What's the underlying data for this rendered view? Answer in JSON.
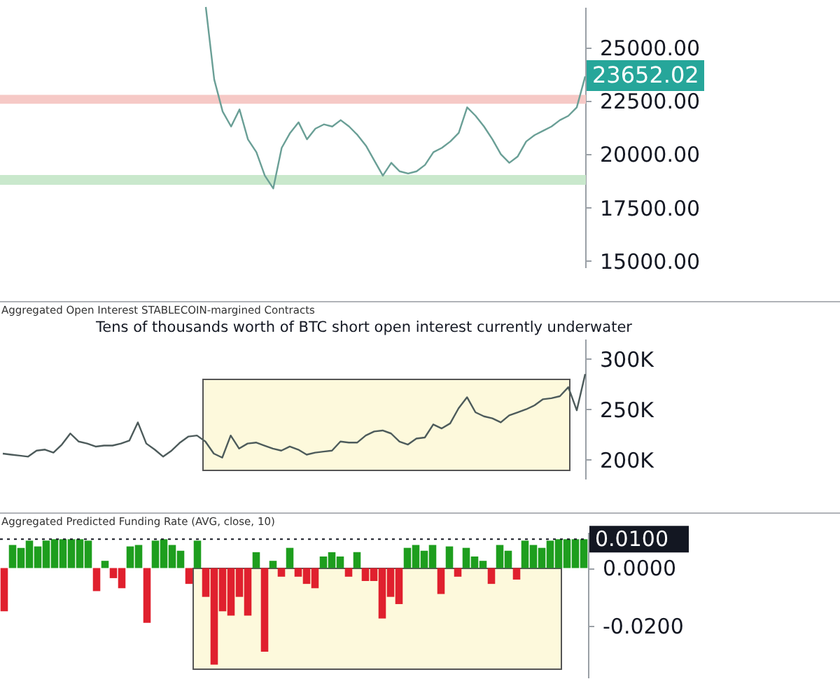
{
  "chart_data": [
    {
      "type": "line",
      "categories": [
        null,
        null,
        null,
        null,
        null,
        null,
        null,
        null,
        null,
        null,
        null,
        null,
        null,
        null,
        null,
        null,
        null,
        null,
        null,
        null,
        null,
        null,
        null,
        null,
        null,
        null,
        null,
        null,
        null,
        null,
        null,
        null,
        null,
        null,
        null,
        null,
        null,
        null,
        null,
        null,
        null,
        null,
        null,
        null,
        null,
        null
      ],
      "series": [
        {
          "color": "#6a9f96",
          "values": [
            26900,
            23500,
            22000,
            21300,
            22100,
            20700,
            20100,
            19000,
            18400,
            20300,
            21000,
            21500,
            20700,
            21200,
            21400,
            21300,
            21600,
            21300,
            20900,
            20400,
            19700,
            19000,
            19600,
            19200,
            19100,
            19200,
            19500,
            20100,
            20300,
            20600,
            21000,
            22200,
            21800,
            21300,
            20700,
            20000,
            19600,
            19900,
            20600,
            20900,
            21100,
            21300,
            21600,
            21800,
            22200,
            23650
          ]
        }
      ],
      "ylim": [
        14700,
        26900
      ],
      "yticks": [
        {
          "value": 15000,
          "label": "15000.00"
        },
        {
          "value": 17500,
          "label": "17500.00"
        },
        {
          "value": 20000,
          "label": "20000.00"
        },
        {
          "value": 22500,
          "label": "22500.00"
        },
        {
          "value": 25000,
          "label": "25000.00"
        }
      ],
      "bands": [
        {
          "axis": "y",
          "from": 22400,
          "to": 22750,
          "color": "#f6c9c6"
        },
        {
          "axis": "y",
          "from": 18600,
          "to": 19000,
          "color": "#c9e8cc"
        }
      ],
      "annotations": [
        "23652.02"
      ],
      "tick_labels": "y",
      "grid": false
    },
    {
      "type": "line",
      "title": "Aggregated Open Interest STABLECOIN-margined Contracts",
      "categories": [
        null,
        null,
        null,
        null,
        null,
        null,
        null,
        null,
        null,
        null,
        null,
        null,
        null,
        null,
        null,
        null,
        null,
        null,
        null,
        null,
        null,
        null,
        null,
        null,
        null,
        null,
        null,
        null,
        null,
        null,
        null,
        null,
        null,
        null,
        null,
        null,
        null,
        null,
        null,
        null,
        null,
        null,
        null,
        null,
        null,
        null,
        null,
        null,
        null,
        null,
        null,
        null,
        null,
        null,
        null,
        null,
        null,
        null,
        null,
        null,
        null,
        null,
        null,
        null,
        null,
        null,
        null,
        null,
        null,
        null
      ],
      "series": [
        {
          "color": "#4d5b5b",
          "values": [
            206000,
            205000,
            204000,
            203000,
            209000,
            210000,
            207000,
            215000,
            226000,
            218000,
            216000,
            213000,
            214000,
            214000,
            216000,
            219000,
            237000,
            216000,
            210000,
            203000,
            209000,
            217000,
            223000,
            224000,
            218000,
            206000,
            202000,
            224000,
            211000,
            216000,
            217000,
            214000,
            211000,
            209000,
            213000,
            210000,
            205000,
            207000,
            208000,
            209000,
            218000,
            217000,
            217000,
            224000,
            228000,
            229000,
            226000,
            218000,
            215000,
            221000,
            222000,
            235000,
            231000,
            236000,
            251000,
            262000,
            247000,
            243000,
            241000,
            237000,
            244000,
            247000,
            250000,
            254000,
            260000,
            261000,
            263000,
            272000,
            249000,
            285000
          ]
        }
      ],
      "ylim": [
        181000,
        320000
      ],
      "yticks": [
        {
          "value": 200000,
          "label": "200K"
        },
        {
          "value": 250000,
          "label": "250K"
        },
        {
          "value": 300000,
          "label": "300K"
        }
      ],
      "annotations": [
        "Tens of thousands worth of BTC short open interest currently underwater"
      ],
      "tick_labels": "y",
      "grid": false
    },
    {
      "type": "bar",
      "title": "Aggregated Predicted Funding Rate (AVG, close, 10)",
      "categories": [
        null,
        null,
        null,
        null,
        null,
        null,
        null,
        null,
        null,
        null,
        null,
        null,
        null,
        null,
        null,
        null,
        null,
        null,
        null,
        null,
        null,
        null,
        null,
        null,
        null,
        null,
        null,
        null,
        null,
        null,
        null,
        null,
        null,
        null,
        null,
        null,
        null,
        null,
        null,
        null,
        null,
        null,
        null,
        null,
        null,
        null,
        null,
        null,
        null,
        null,
        null,
        null,
        null,
        null,
        null,
        null,
        null,
        null,
        null,
        null,
        null,
        null,
        null,
        null,
        null,
        null,
        null,
        null,
        null,
        null
      ],
      "series": [
        {
          "values": [
            -0.015,
            0.008,
            0.007,
            0.0095,
            0.0075,
            0.0095,
            0.01,
            0.01,
            0.01,
            0.01,
            0.0095,
            -0.008,
            0.0025,
            -0.0035,
            -0.007,
            0.0075,
            0.008,
            -0.019,
            0.0095,
            0.01,
            0.008,
            0.006,
            -0.0055,
            0.0095,
            -0.01,
            -0.0335,
            -0.015,
            -0.0165,
            -0.01,
            -0.0165,
            0.0055,
            -0.029,
            0.0025,
            -0.003,
            0.007,
            -0.003,
            -0.0055,
            -0.007,
            0.004,
            0.0055,
            0.004,
            -0.003,
            0.0055,
            -0.0045,
            -0.0045,
            -0.0175,
            -0.01,
            -0.0125,
            0.007,
            0.008,
            0.006,
            0.008,
            -0.009,
            0.0075,
            -0.003,
            0.007,
            0.004,
            0.0025,
            -0.0055,
            0.008,
            0.006,
            -0.004,
            0.0095,
            0.008,
            0.007,
            0.0095,
            0.01,
            0.01,
            0.01,
            0.01
          ],
          "colors": [
            "#e0202e",
            "#1e9e1e",
            "#1e9e1e",
            "#1e9e1e",
            "#1e9e1e",
            "#1e9e1e",
            "#1e9e1e",
            "#1e9e1e",
            "#1e9e1e",
            "#1e9e1e",
            "#1e9e1e",
            "#e0202e",
            "#1e9e1e",
            "#e0202e",
            "#e0202e",
            "#1e9e1e",
            "#1e9e1e",
            "#e0202e",
            "#1e9e1e",
            "#1e9e1e",
            "#1e9e1e",
            "#1e9e1e",
            "#e0202e",
            "#1e9e1e",
            "#e0202e",
            "#e0202e",
            "#e0202e",
            "#e0202e",
            "#e0202e",
            "#e0202e",
            "#1e9e1e",
            "#e0202e",
            "#1e9e1e",
            "#e0202e",
            "#1e9e1e",
            "#e0202e",
            "#e0202e",
            "#e0202e",
            "#1e9e1e",
            "#1e9e1e",
            "#1e9e1e",
            "#e0202e",
            "#1e9e1e",
            "#e0202e",
            "#e0202e",
            "#e0202e",
            "#e0202e",
            "#e0202e",
            "#1e9e1e",
            "#1e9e1e",
            "#1e9e1e",
            "#1e9e1e",
            "#e0202e",
            "#1e9e1e",
            "#e0202e",
            "#1e9e1e",
            "#1e9e1e",
            "#1e9e1e",
            "#e0202e",
            "#1e9e1e",
            "#1e9e1e",
            "#e0202e",
            "#1e9e1e",
            "#1e9e1e",
            "#1e9e1e",
            "#1e9e1e",
            "#1e9e1e",
            "#1e9e1e",
            "#1e9e1e",
            "#1e9e1e"
          ]
        }
      ],
      "ylim": [
        -0.038,
        0.0125
      ],
      "yticks": [
        {
          "value": -0.02,
          "label": "-0.0200"
        },
        {
          "value": 0,
          "label": "0.0000"
        }
      ],
      "ref_lines": [
        {
          "axis": "y",
          "value": 0.01,
          "label": "0.0100",
          "color": "#131722",
          "line_style": "dotted"
        }
      ],
      "tick_labels": "y",
      "grid": false
    }
  ]
}
